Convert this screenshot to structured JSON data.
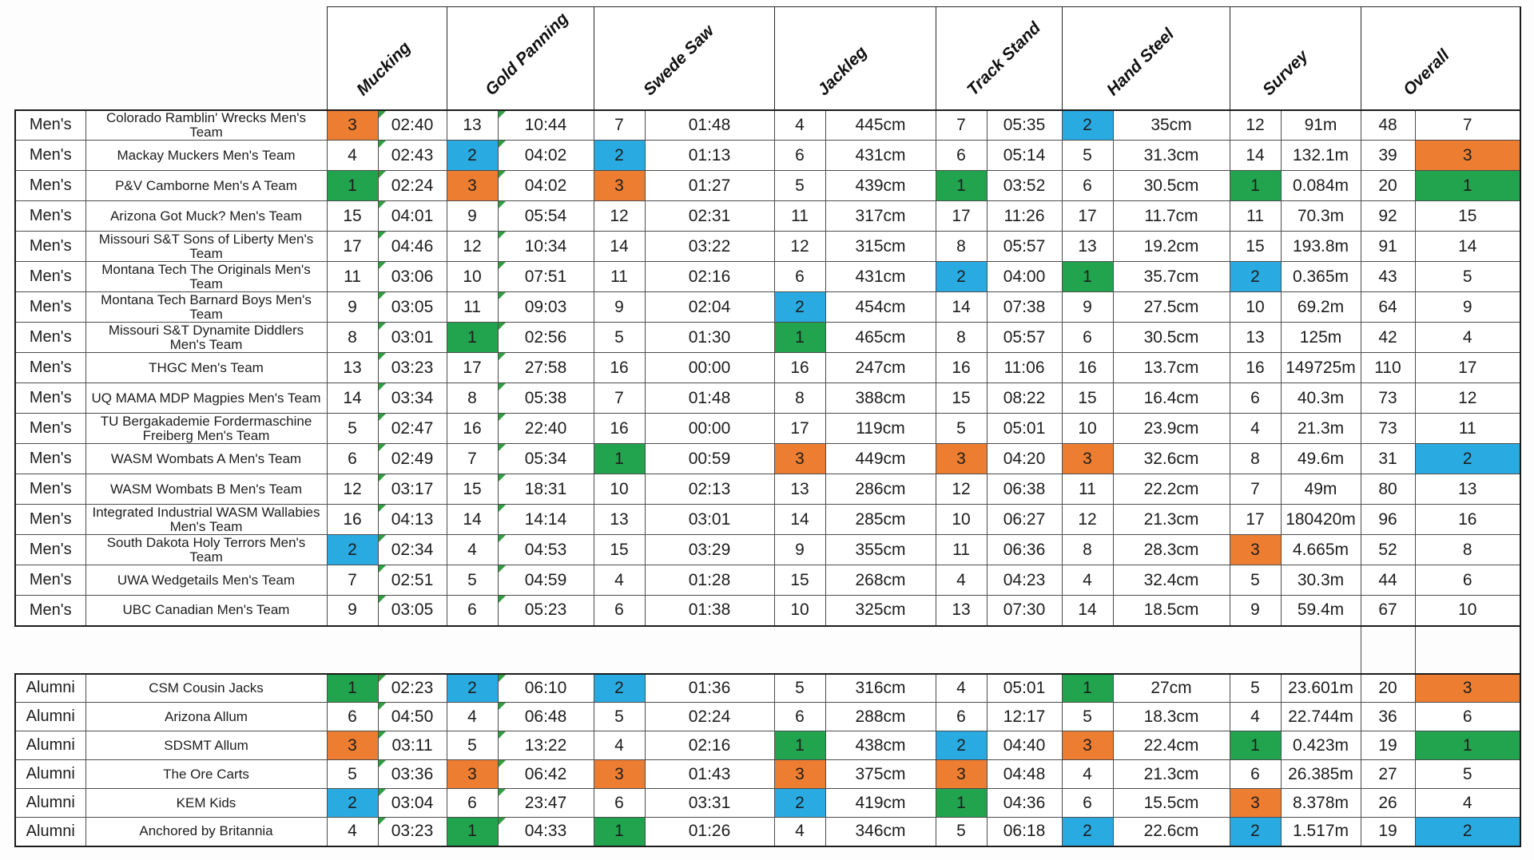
{
  "events": [
    "Mucking",
    "Gold Panning",
    "Swede Saw",
    "Jackleg",
    "Track Stand",
    "Hand Steel",
    "Survey",
    "Overall"
  ],
  "rank_colors": {
    "1": "#21a44d",
    "2": "#29abe2",
    "3": "#ed7d31"
  },
  "flag_color": "#2f9e41",
  "flag_event_indexes": [
    0,
    1
  ],
  "footnote_symbol": "*",
  "sections": [
    {
      "name": "Men's",
      "rows": [
        {
          "category": "Men's",
          "team": "Colorado Ramblin' Wrecks Men's Team",
          "events": [
            [
              "3",
              "02:40"
            ],
            [
              "13",
              "10:44"
            ],
            [
              "7",
              "01:48"
            ],
            [
              "4",
              "445cm"
            ],
            [
              "7",
              "05:35"
            ],
            [
              "2",
              "35cm"
            ],
            [
              "12",
              "91m"
            ]
          ],
          "points": "48",
          "overall": "7",
          "note": ""
        },
        {
          "category": "Men's",
          "team": "Mackay Muckers Men's Team",
          "events": [
            [
              "4",
              "02:43"
            ],
            [
              "2",
              "04:02"
            ],
            [
              "2",
              "01:13"
            ],
            [
              "6",
              "431cm"
            ],
            [
              "6",
              "05:14"
            ],
            [
              "5",
              "31.3cm"
            ],
            [
              "14",
              "132.1m"
            ]
          ],
          "points": "39",
          "overall": "3",
          "note": ""
        },
        {
          "category": "Men's",
          "team": "P&V Camborne Men's A Team",
          "events": [
            [
              "1",
              "02:24"
            ],
            [
              "3",
              "04:02"
            ],
            [
              "3",
              "01:27"
            ],
            [
              "5",
              "439cm"
            ],
            [
              "1",
              "03:52"
            ],
            [
              "6",
              "30.5cm"
            ],
            [
              "1",
              "0.084m"
            ]
          ],
          "points": "20",
          "overall": "1",
          "note": ""
        },
        {
          "category": "Men's",
          "team": "Arizona Got Muck? Men's Team",
          "events": [
            [
              "15",
              "04:01"
            ],
            [
              "9",
              "05:54"
            ],
            [
              "12",
              "02:31"
            ],
            [
              "11",
              "317cm"
            ],
            [
              "17",
              "11:26"
            ],
            [
              "17",
              "11.7cm"
            ],
            [
              "11",
              "70.3m"
            ]
          ],
          "points": "92",
          "overall": "15",
          "note": ""
        },
        {
          "category": "Men's",
          "team": "Missouri S&T Sons of Liberty Men's Team",
          "events": [
            [
              "17",
              "04:46"
            ],
            [
              "12",
              "10:34"
            ],
            [
              "14",
              "03:22"
            ],
            [
              "12",
              "315cm"
            ],
            [
              "8",
              "05:57"
            ],
            [
              "13",
              "19.2cm"
            ],
            [
              "15",
              "193.8m"
            ]
          ],
          "points": "91",
          "overall": "14",
          "note": ""
        },
        {
          "category": "Men's",
          "team": "Montana Tech The Originals Men's Team",
          "events": [
            [
              "11",
              "03:06"
            ],
            [
              "10",
              "07:51"
            ],
            [
              "11",
              "02:16"
            ],
            [
              "6",
              "431cm"
            ],
            [
              "2",
              "04:00"
            ],
            [
              "1",
              "35.7cm"
            ],
            [
              "2",
              "0.365m"
            ]
          ],
          "points": "43",
          "overall": "5",
          "note": ""
        },
        {
          "category": "Men's",
          "team": "Montana Tech Barnard Boys Men's Team",
          "events": [
            [
              "9",
              "03:05"
            ],
            [
              "11",
              "09:03"
            ],
            [
              "9",
              "02:04"
            ],
            [
              "2",
              "454cm"
            ],
            [
              "14",
              "07:38"
            ],
            [
              "9",
              "27.5cm"
            ],
            [
              "10",
              "69.2m"
            ]
          ],
          "points": "64",
          "overall": "9",
          "note": ""
        },
        {
          "category": "Men's",
          "team": "Missouri S&T Dynamite Diddlers Men's Team",
          "events": [
            [
              "8",
              "03:01"
            ],
            [
              "1",
              "02:56"
            ],
            [
              "5",
              "01:30"
            ],
            [
              "1",
              "465cm"
            ],
            [
              "8",
              "05:57"
            ],
            [
              "6",
              "30.5cm"
            ],
            [
              "13",
              "125m"
            ]
          ],
          "points": "42",
          "overall": "4",
          "note": ""
        },
        {
          "category": "Men's",
          "team": "THGC Men's Team",
          "events": [
            [
              "13",
              "03:23"
            ],
            [
              "17",
              "27:58"
            ],
            [
              "16",
              "00:00"
            ],
            [
              "16",
              "247cm"
            ],
            [
              "16",
              "11:06"
            ],
            [
              "16",
              "13.7cm"
            ],
            [
              "16",
              "149725m"
            ]
          ],
          "points": "110",
          "overall": "17",
          "note": ""
        },
        {
          "category": "Men's",
          "team": "UQ MAMA MDP Magpies Men's Team",
          "events": [
            [
              "14",
              "03:34"
            ],
            [
              "8",
              "05:38"
            ],
            [
              "7",
              "01:48"
            ],
            [
              "8",
              "388cm"
            ],
            [
              "15",
              "08:22"
            ],
            [
              "15",
              "16.4cm"
            ],
            [
              "6",
              "40.3m"
            ]
          ],
          "points": "73",
          "overall": "12",
          "note": ""
        },
        {
          "category": "Men's",
          "team": "TU Bergakademie Fordermaschine Freiberg Men's Team",
          "events": [
            [
              "5",
              "02:47"
            ],
            [
              "16",
              "22:40"
            ],
            [
              "16",
              "00:00"
            ],
            [
              "17",
              "119cm"
            ],
            [
              "5",
              "05:01"
            ],
            [
              "10",
              "23.9cm"
            ],
            [
              "4",
              "21.3m"
            ]
          ],
          "points": "73",
          "overall": "11",
          "note": ""
        },
        {
          "category": "Men's",
          "team": "WASM Wombats A Men's Team",
          "events": [
            [
              "6",
              "02:49"
            ],
            [
              "7",
              "05:34"
            ],
            [
              "1",
              "00:59"
            ],
            [
              "3",
              "449cm"
            ],
            [
              "3",
              "04:20"
            ],
            [
              "3",
              "32.6cm"
            ],
            [
              "8",
              "49.6m"
            ]
          ],
          "points": "31",
          "overall": "2",
          "note": "*"
        },
        {
          "category": "Men's",
          "team": "WASM Wombats B Men's Team",
          "events": [
            [
              "12",
              "03:17"
            ],
            [
              "15",
              "18:31"
            ],
            [
              "10",
              "02:13"
            ],
            [
              "13",
              "286cm"
            ],
            [
              "12",
              "06:38"
            ],
            [
              "11",
              "22.2cm"
            ],
            [
              "7",
              "49m"
            ]
          ],
          "points": "80",
          "overall": "13",
          "note": ""
        },
        {
          "category": "Men's",
          "team": "Integrated Industrial WASM Wallabies Men's Team",
          "events": [
            [
              "16",
              "04:13"
            ],
            [
              "14",
              "14:14"
            ],
            [
              "13",
              "03:01"
            ],
            [
              "14",
              "285cm"
            ],
            [
              "10",
              "06:27"
            ],
            [
              "12",
              "21.3cm"
            ],
            [
              "17",
              "180420m"
            ]
          ],
          "points": "96",
          "overall": "16",
          "note": ""
        },
        {
          "category": "Men's",
          "team": "South Dakota Holy Terrors Men's Team",
          "events": [
            [
              "2",
              "02:34"
            ],
            [
              "4",
              "04:53"
            ],
            [
              "15",
              "03:29"
            ],
            [
              "9",
              "355cm"
            ],
            [
              "11",
              "06:36"
            ],
            [
              "8",
              "28.3cm"
            ],
            [
              "3",
              "4.665m"
            ]
          ],
          "points": "52",
          "overall": "8",
          "note": ""
        },
        {
          "category": "Men's",
          "team": "UWA Wedgetails Men's Team",
          "events": [
            [
              "7",
              "02:51"
            ],
            [
              "5",
              "04:59"
            ],
            [
              "4",
              "01:28"
            ],
            [
              "15",
              "268cm"
            ],
            [
              "4",
              "04:23"
            ],
            [
              "4",
              "32.4cm"
            ],
            [
              "5",
              "30.3m"
            ]
          ],
          "points": "44",
          "overall": "6",
          "note": ""
        },
        {
          "category": "Men's",
          "team": "UBC Canadian Men's Team",
          "events": [
            [
              "9",
              "03:05"
            ],
            [
              "6",
              "05:23"
            ],
            [
              "6",
              "01:38"
            ],
            [
              "10",
              "325cm"
            ],
            [
              "13",
              "07:30"
            ],
            [
              "14",
              "18.5cm"
            ],
            [
              "9",
              "59.4m"
            ]
          ],
          "points": "67",
          "overall": "10",
          "note": ""
        }
      ]
    },
    {
      "name": "Alumni",
      "rows": [
        {
          "category": "Alumni",
          "team": "CSM Cousin Jacks",
          "events": [
            [
              "1",
              "02:23"
            ],
            [
              "2",
              "06:10"
            ],
            [
              "2",
              "01:36"
            ],
            [
              "5",
              "316cm"
            ],
            [
              "4",
              "05:01"
            ],
            [
              "1",
              "27cm"
            ],
            [
              "5",
              "23.601m"
            ]
          ],
          "points": "20",
          "overall": "3",
          "note": ""
        },
        {
          "category": "Alumni",
          "team": "Arizona Allum",
          "events": [
            [
              "6",
              "04:50"
            ],
            [
              "4",
              "06:48"
            ],
            [
              "5",
              "02:24"
            ],
            [
              "6",
              "288cm"
            ],
            [
              "6",
              "12:17"
            ],
            [
              "5",
              "18.3cm"
            ],
            [
              "4",
              "22.744m"
            ]
          ],
          "points": "36",
          "overall": "6",
          "note": ""
        },
        {
          "category": "Alumni",
          "team": "SDSMT Allum",
          "events": [
            [
              "3",
              "03:11"
            ],
            [
              "5",
              "13:22"
            ],
            [
              "4",
              "02:16"
            ],
            [
              "1",
              "438cm"
            ],
            [
              "2",
              "04:40"
            ],
            [
              "3",
              "22.4cm"
            ],
            [
              "1",
              "0.423m"
            ]
          ],
          "points": "19",
          "overall": "1",
          "note": "*"
        },
        {
          "category": "Alumni",
          "team": "The Ore Carts",
          "events": [
            [
              "5",
              "03:36"
            ],
            [
              "3",
              "06:42"
            ],
            [
              "3",
              "01:43"
            ],
            [
              "3",
              "375cm"
            ],
            [
              "3",
              "04:48"
            ],
            [
              "4",
              "21.3cm"
            ],
            [
              "6",
              "26.385m"
            ]
          ],
          "points": "27",
          "overall": "5",
          "note": ""
        },
        {
          "category": "Alumni",
          "team": "KEM Kids",
          "events": [
            [
              "2",
              "03:04"
            ],
            [
              "6",
              "23:47"
            ],
            [
              "6",
              "03:31"
            ],
            [
              "2",
              "419cm"
            ],
            [
              "1",
              "04:36"
            ],
            [
              "6",
              "15.5cm"
            ],
            [
              "3",
              "8.378m"
            ]
          ],
          "points": "26",
          "overall": "4",
          "note": ""
        },
        {
          "category": "Alumni",
          "team": "Anchored by Britannia",
          "events": [
            [
              "4",
              "03:23"
            ],
            [
              "1",
              "04:33"
            ],
            [
              "1",
              "01:26"
            ],
            [
              "4",
              "346cm"
            ],
            [
              "5",
              "06:18"
            ],
            [
              "2",
              "22.6cm"
            ],
            [
              "2",
              "1.517m"
            ]
          ],
          "points": "19",
          "overall": "2",
          "note": ""
        }
      ]
    }
  ]
}
